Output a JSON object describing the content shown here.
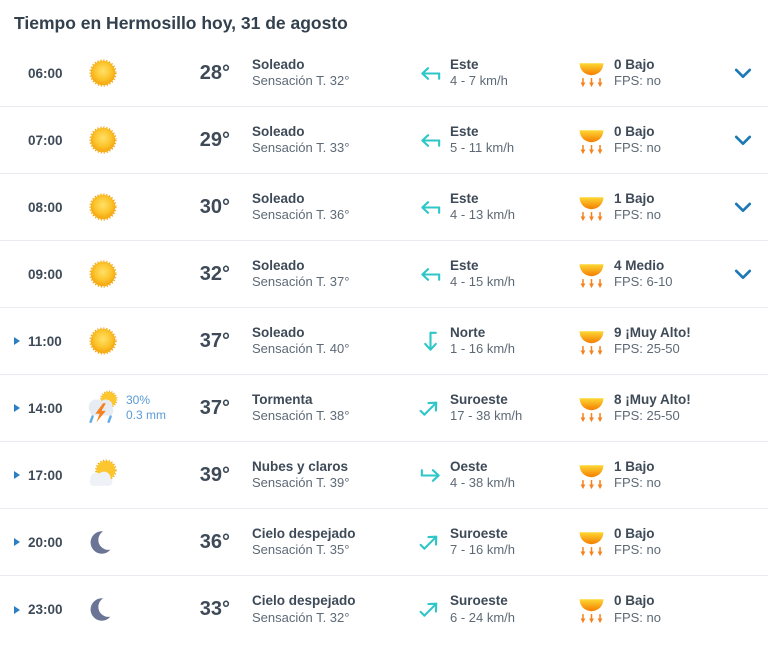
{
  "title": "Tiempo en Hermosillo hoy, 31 de agosto",
  "colors": {
    "heading_text": "#33404d",
    "primary_text": "#3e4a57",
    "secondary_text": "#5d6a76",
    "wind_arrow_teal": "#2fc6c8",
    "chevron_blue": "#1d79b5",
    "marker_blue": "#2b7fc2",
    "precip_blue": "#5b9bd5",
    "sun_yellow": "#fcc62e",
    "uv_orange": "#f57c1f",
    "divider": "#e9edf1"
  },
  "rows": [
    {
      "time": "06:00",
      "icon": "sun",
      "precip_chance": "",
      "precip_amount": "",
      "temp": "28°",
      "condition": "Soleado",
      "feels_like": "Sensación T. 32°",
      "wind_dir": "Este",
      "wind_arrow": "left",
      "wind_speed": "4 - 7 km/h",
      "uv_label": "0 Bajo",
      "uv_fps": "FPS: no",
      "marker": false,
      "chevron": true
    },
    {
      "time": "07:00",
      "icon": "sun",
      "precip_chance": "",
      "precip_amount": "",
      "temp": "29°",
      "condition": "Soleado",
      "feels_like": "Sensación T. 33°",
      "wind_dir": "Este",
      "wind_arrow": "left",
      "wind_speed": "5 - 11 km/h",
      "uv_label": "0 Bajo",
      "uv_fps": "FPS: no",
      "marker": false,
      "chevron": true
    },
    {
      "time": "08:00",
      "icon": "sun",
      "precip_chance": "",
      "precip_amount": "",
      "temp": "30°",
      "condition": "Soleado",
      "feels_like": "Sensación T. 36°",
      "wind_dir": "Este",
      "wind_arrow": "left",
      "wind_speed": "4 - 13 km/h",
      "uv_label": "1 Bajo",
      "uv_fps": "FPS: no",
      "marker": false,
      "chevron": true
    },
    {
      "time": "09:00",
      "icon": "sun",
      "precip_chance": "",
      "precip_amount": "",
      "temp": "32°",
      "condition": "Soleado",
      "feels_like": "Sensación T. 37°",
      "wind_dir": "Este",
      "wind_arrow": "left",
      "wind_speed": "4 - 15 km/h",
      "uv_label": "4 Medio",
      "uv_fps": "FPS: 6-10",
      "marker": false,
      "chevron": true
    },
    {
      "time": "11:00",
      "icon": "sun",
      "precip_chance": "",
      "precip_amount": "",
      "temp": "37°",
      "condition": "Soleado",
      "feels_like": "Sensación T. 40°",
      "wind_dir": "Norte",
      "wind_arrow": "down",
      "wind_speed": "1 - 16 km/h",
      "uv_label": "9 ¡Muy Alto!",
      "uv_fps": "FPS: 25-50",
      "marker": true,
      "chevron": false
    },
    {
      "time": "14:00",
      "icon": "storm",
      "precip_chance": "30%",
      "precip_amount": "0.3 mm",
      "temp": "37°",
      "condition": "Tormenta",
      "feels_like": "Sensación T. 38°",
      "wind_dir": "Suroeste",
      "wind_arrow": "up-right",
      "wind_speed": "17 - 38 km/h",
      "uv_label": "8 ¡Muy Alto!",
      "uv_fps": "FPS: 25-50",
      "marker": true,
      "chevron": false
    },
    {
      "time": "17:00",
      "icon": "sun-cloud",
      "precip_chance": "",
      "precip_amount": "",
      "temp": "39°",
      "condition": "Nubes y claros",
      "feels_like": "Sensación T. 39°",
      "wind_dir": "Oeste",
      "wind_arrow": "right",
      "wind_speed": "4 - 38 km/h",
      "uv_label": "1 Bajo",
      "uv_fps": "FPS: no",
      "marker": true,
      "chevron": false
    },
    {
      "time": "20:00",
      "icon": "moon",
      "precip_chance": "",
      "precip_amount": "",
      "temp": "36°",
      "condition": "Cielo despejado",
      "feels_like": "Sensación T. 35°",
      "wind_dir": "Suroeste",
      "wind_arrow": "up-right",
      "wind_speed": "7 - 16 km/h",
      "uv_label": "0 Bajo",
      "uv_fps": "FPS: no",
      "marker": true,
      "chevron": false
    },
    {
      "time": "23:00",
      "icon": "moon",
      "precip_chance": "",
      "precip_amount": "",
      "temp": "33°",
      "condition": "Cielo despejado",
      "feels_like": "Sensación T. 32°",
      "wind_dir": "Suroeste",
      "wind_arrow": "up-right",
      "wind_speed": "6 - 24 km/h",
      "uv_label": "0 Bajo",
      "uv_fps": "FPS: no",
      "marker": true,
      "chevron": false
    }
  ]
}
